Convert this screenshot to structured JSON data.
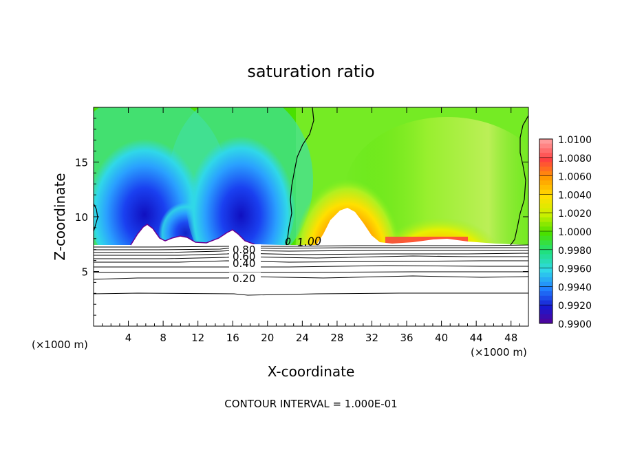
{
  "chart_data": {
    "type": "heatmap",
    "title": "saturation ratio",
    "xlabel": "X-coordinate",
    "ylabel": "Z-coordinate",
    "x_unit": "(×1000 m)",
    "xlim": [
      0,
      50
    ],
    "ylim": [
      0,
      20
    ],
    "x_ticks": [
      4,
      8,
      12,
      16,
      20,
      24,
      28,
      32,
      36,
      40,
      44,
      48
    ],
    "y_ticks": [
      5,
      10,
      15
    ],
    "colorbar": {
      "levels": [
        "1.0100",
        "1.0080",
        "1.0060",
        "1.0040",
        "1.0020",
        "1.0000",
        "0.9980",
        "0.9960",
        "0.9940",
        "0.9920",
        "0.9900"
      ],
      "colors": [
        "#ff9a9a",
        "#ff4040",
        "#ff9a00",
        "#ffe000",
        "#c8f000",
        "#4ae000",
        "#20e080",
        "#30d8e8",
        "#2080ff",
        "#1818d0",
        "#5a0090"
      ]
    },
    "contour_labels": [
      "1.00",
      "0.80",
      "0.60",
      "0.40",
      "0.20"
    ],
    "contour_interval_text": "CONTOUR INTERVAL = 1.000E-01",
    "regions": [
      {
        "x": 5.5,
        "z": 9.8,
        "value": 0.991
      },
      {
        "x": 10.5,
        "z": 10.0,
        "value": 0.993
      },
      {
        "x": 16.5,
        "z": 9.8,
        "value": 0.991
      },
      {
        "x": 29.0,
        "z": 10.5,
        "value": 1.007
      },
      {
        "x": 40.0,
        "z": 9.0,
        "value": 1.003
      }
    ],
    "grid": false
  }
}
